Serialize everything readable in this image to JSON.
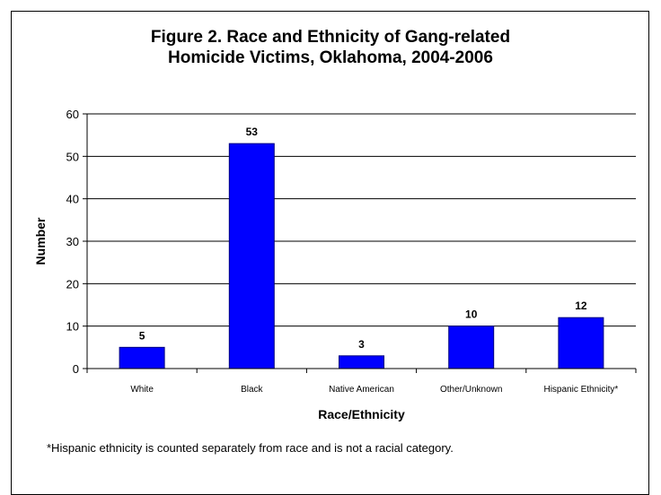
{
  "chart_data": {
    "type": "bar",
    "title": [
      "Figure 2. Race and Ethnicity of Gang-related",
      "Homicide Victims, Oklahoma, 2004-2006"
    ],
    "xlabel": "Race/Ethnicity",
    "ylabel": "Number",
    "categories": [
      "White",
      "Black",
      "Native American",
      "Other/Unknown",
      "Hispanic Ethnicity*"
    ],
    "values": [
      5,
      53,
      3,
      10,
      12
    ],
    "data_labels": [
      "5",
      "53",
      "3",
      "10",
      "12"
    ],
    "ylim": [
      0,
      60
    ],
    "yticks": [
      0,
      10,
      20,
      30,
      40,
      50,
      60
    ],
    "grid": "horizontal",
    "legend": "none",
    "bar_color": "#0000FF",
    "bar_edge_color": "#000080"
  },
  "footnote": "*Hispanic ethnicity is counted separately from race and is not a racial category."
}
